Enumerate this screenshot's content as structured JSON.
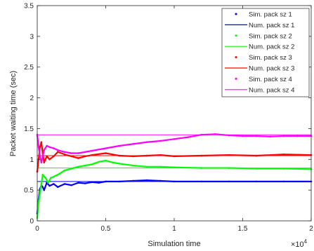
{
  "chart_data": {
    "type": "line",
    "title": "",
    "xlabel": "Simulation time",
    "ylabel": "Packet waiting time (sec)",
    "x_exponent_label": "×10",
    "x_exponent_power": "4",
    "xlim": [
      0,
      20000
    ],
    "ylim": [
      0,
      3.5
    ],
    "xticks": [
      0,
      5000,
      10000,
      15000,
      20000
    ],
    "xtick_labels": [
      "0",
      "0.5",
      "1",
      "1.5",
      "2"
    ],
    "yticks": [
      0,
      0.5,
      1,
      1.5,
      2,
      2.5,
      3,
      3.5
    ],
    "ytick_labels": [
      "0",
      "0.5",
      "1",
      "1.5",
      "2",
      "2.5",
      "3",
      "3.5"
    ],
    "grid": false,
    "legend_position": "top-right",
    "series": [
      {
        "name": "Sim. pack sz 1",
        "kind": "scatter",
        "color": "#0000ff",
        "x": [
          0,
          100,
          200,
          300,
          400,
          500,
          700,
          900,
          1200,
          1500,
          2000,
          2500,
          3000,
          3500,
          4000,
          4500,
          5000,
          6000,
          7000,
          8000,
          9000,
          10000,
          12000,
          14000,
          16000,
          18000,
          20000
        ],
        "y": [
          0.12,
          0.35,
          0.52,
          0.58,
          0.55,
          0.5,
          0.62,
          0.57,
          0.6,
          0.55,
          0.6,
          0.58,
          0.62,
          0.61,
          0.63,
          0.62,
          0.64,
          0.64,
          0.65,
          0.66,
          0.65,
          0.64,
          0.64,
          0.64,
          0.64,
          0.64,
          0.64
        ]
      },
      {
        "name": "Num. pack sz 1",
        "kind": "line",
        "color": "#0000ff",
        "x": [
          0,
          20000
        ],
        "y": [
          0.64,
          0.64
        ]
      },
      {
        "name": "Sim. pack sz 2",
        "kind": "scatter",
        "color": "#00ff00",
        "x": [
          0,
          100,
          200,
          300,
          400,
          600,
          800,
          1000,
          1500,
          2000,
          2500,
          3000,
          3500,
          4000,
          4500,
          5000,
          5500,
          6000,
          7000,
          8000,
          9000,
          10000,
          12000,
          14000,
          16000,
          18000,
          20000
        ],
        "y": [
          0.05,
          0.3,
          0.45,
          0.6,
          0.75,
          0.7,
          0.62,
          0.7,
          0.75,
          0.82,
          0.85,
          0.88,
          0.9,
          0.92,
          0.96,
          0.98,
          0.95,
          0.93,
          0.9,
          0.88,
          0.88,
          0.87,
          0.86,
          0.86,
          0.85,
          0.85,
          0.84
        ]
      },
      {
        "name": "Num. pack sz 2",
        "kind": "line",
        "color": "#00ff00",
        "x": [
          0,
          20000
        ],
        "y": [
          0.86,
          0.86
        ]
      },
      {
        "name": "Sim. pack sz 3",
        "kind": "scatter",
        "color": "#ff0000",
        "x": [
          0,
          100,
          200,
          300,
          400,
          500,
          700,
          900,
          1200,
          1500,
          2000,
          2500,
          3000,
          3500,
          4000,
          5000,
          6000,
          7000,
          8000,
          9000,
          10000,
          12000,
          14000,
          16000,
          18000,
          20000
        ],
        "y": [
          0.8,
          1.0,
          1.2,
          1.28,
          1.1,
          0.95,
          1.05,
          1.0,
          1.05,
          1.12,
          1.08,
          1.05,
          1.02,
          1.05,
          1.07,
          1.1,
          1.06,
          1.05,
          1.06,
          1.07,
          1.05,
          1.06,
          1.07,
          1.06,
          1.08,
          1.07
        ]
      },
      {
        "name": "Num. pack sz 3",
        "kind": "line",
        "color": "#ff0000",
        "x": [
          0,
          20000
        ],
        "y": [
          1.06,
          1.06
        ]
      },
      {
        "name": "Sim. pack sz 4",
        "kind": "scatter",
        "color": "#ff00ff",
        "x": [
          0,
          100,
          200,
          300,
          500,
          700,
          900,
          1200,
          1500,
          2000,
          2500,
          3000,
          3500,
          4000,
          5000,
          6000,
          7000,
          8000,
          9000,
          10000,
          11000,
          12000,
          13000,
          14000,
          15000,
          16000,
          17000,
          18000,
          19000,
          20000
        ],
        "y": [
          1.4,
          1.2,
          1.05,
          0.95,
          1.15,
          1.22,
          1.2,
          1.18,
          1.15,
          1.12,
          1.1,
          1.1,
          1.12,
          1.14,
          1.18,
          1.22,
          1.25,
          1.28,
          1.3,
          1.33,
          1.36,
          1.4,
          1.41,
          1.39,
          1.38,
          1.38,
          1.37,
          1.38,
          1.38,
          1.38
        ]
      },
      {
        "name": "Num. pack sz 4",
        "kind": "line",
        "color": "#ff00ff",
        "x": [
          0,
          20000
        ],
        "y": [
          1.4,
          1.4
        ]
      }
    ]
  }
}
